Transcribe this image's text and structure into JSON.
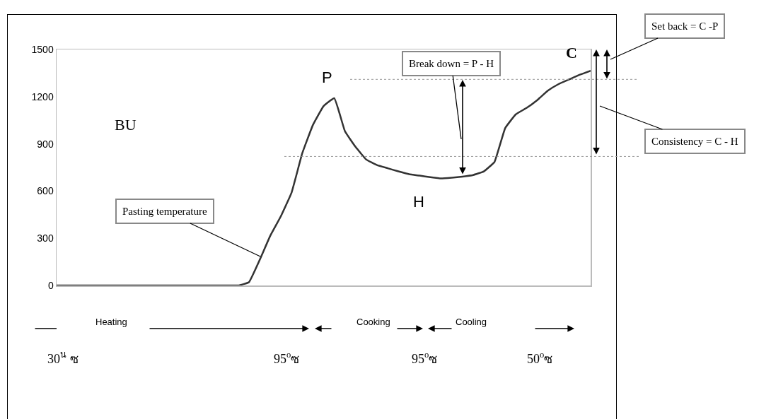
{
  "chart_data": {
    "type": "line",
    "tick_labels": "y",
    "color": "#333333",
    "ylim": [
      0,
      1500
    ],
    "yticks": [
      0,
      300,
      600,
      900,
      1200,
      1500
    ],
    "categories": [
      null,
      null,
      null,
      null,
      null,
      null,
      null,
      null,
      null,
      null,
      null,
      null,
      null,
      null,
      null,
      null,
      null,
      null,
      null,
      null,
      null,
      null,
      null,
      null,
      null,
      null,
      null,
      null,
      null,
      null,
      null,
      null,
      null,
      null,
      null,
      null,
      null,
      null,
      null,
      null,
      null,
      null,
      null,
      null,
      null,
      null,
      null,
      null,
      null,
      null,
      null
    ],
    "values": [
      0,
      0,
      0,
      0,
      0,
      0,
      0,
      0,
      0,
      0,
      0,
      0,
      0,
      0,
      0,
      0,
      0,
      0,
      20,
      160,
      315,
      440,
      590,
      840,
      1020,
      1140,
      1190,
      980,
      880,
      800,
      765,
      745,
      725,
      707,
      698,
      688,
      680,
      685,
      692,
      702,
      725,
      785,
      1000,
      1088,
      1128,
      1178,
      1238,
      1280,
      1310,
      1340,
      1365
    ],
    "ref_lines": [
      {
        "axis": "y",
        "value": 1310,
        "line_style": "dotted",
        "color": "#999999"
      },
      {
        "axis": "y",
        "value": 820,
        "line_style": "dotted",
        "color": "#999999"
      }
    ],
    "annotations": [
      "BU",
      "P",
      "H",
      "C",
      "Pasting temperature",
      "Break down = P - H",
      "Set back = C -P",
      "Consistency = C - H",
      "Heating",
      "Cooking",
      "Cooling",
      "30$^{น}$ ซ",
      "95$^{o}$ซ",
      "95$^{o}$ซ",
      "50$^{o}$ซ"
    ]
  }
}
